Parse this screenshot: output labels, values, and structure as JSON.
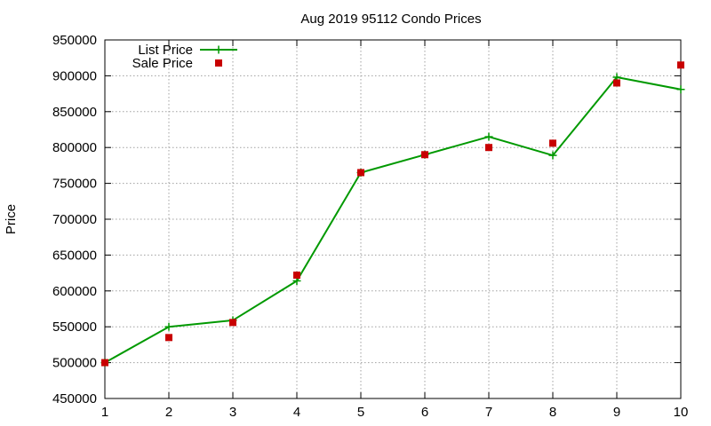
{
  "chart_data": {
    "type": "line",
    "title": "Aug 2019 95112 Condo Prices",
    "xlabel": "",
    "ylabel": "Price",
    "x": [
      1,
      2,
      3,
      4,
      5,
      6,
      7,
      8,
      9,
      10
    ],
    "xlim": [
      1,
      10
    ],
    "ylim": [
      450000,
      950000
    ],
    "xticks": [
      "1",
      "2",
      "3",
      "4",
      "5",
      "6",
      "7",
      "8",
      "9",
      "10"
    ],
    "yticks": [
      "450000",
      "500000",
      "550000",
      "600000",
      "650000",
      "700000",
      "750000",
      "800000",
      "850000",
      "900000",
      "950000"
    ],
    "grid": true,
    "legend_position": "top-left",
    "series": [
      {
        "name": "List Price",
        "style": "line-with-plus-markers",
        "color": "#009900",
        "values": [
          500000,
          550000,
          559000,
          614000,
          765000,
          790000,
          815000,
          789000,
          898000,
          881000
        ]
      },
      {
        "name": "Sale Price",
        "style": "square-markers",
        "color": "#c80000",
        "values": [
          500000,
          535000,
          556000,
          622000,
          765000,
          790000,
          800000,
          806000,
          890000,
          915000
        ]
      }
    ]
  }
}
